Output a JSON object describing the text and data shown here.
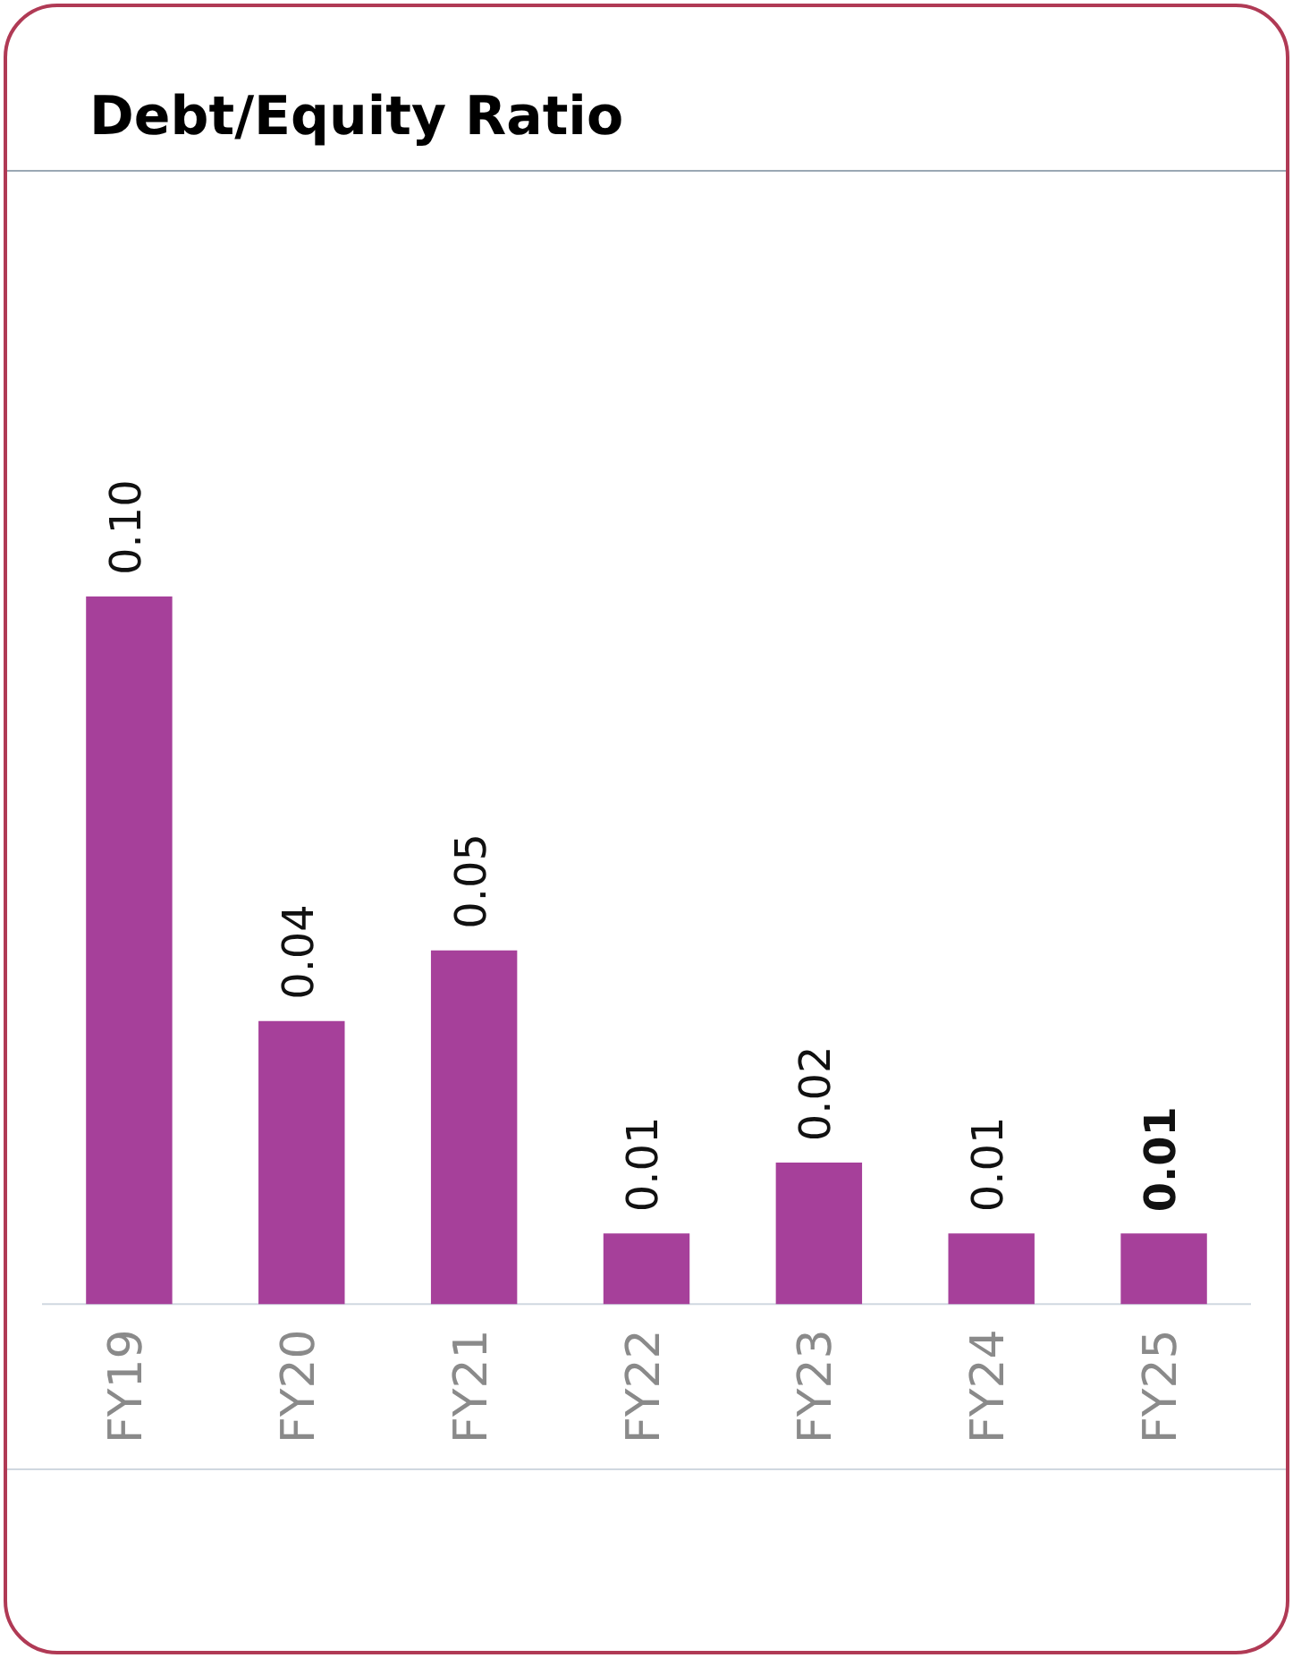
{
  "chart_data": {
    "type": "bar",
    "title": "Debt/Equity Ratio",
    "categories": [
      "FY19",
      "FY20",
      "FY21",
      "FY22",
      "FY23",
      "FY24",
      "FY25"
    ],
    "values": [
      0.1,
      0.04,
      0.05,
      0.01,
      0.02,
      0.01,
      0.01
    ],
    "color": "#a6409a",
    "value_labels": [
      "0.10",
      "0.04",
      "0.05",
      "0.01",
      "0.02",
      "0.01",
      "0.01"
    ],
    "tick_labels": "x"
  }
}
